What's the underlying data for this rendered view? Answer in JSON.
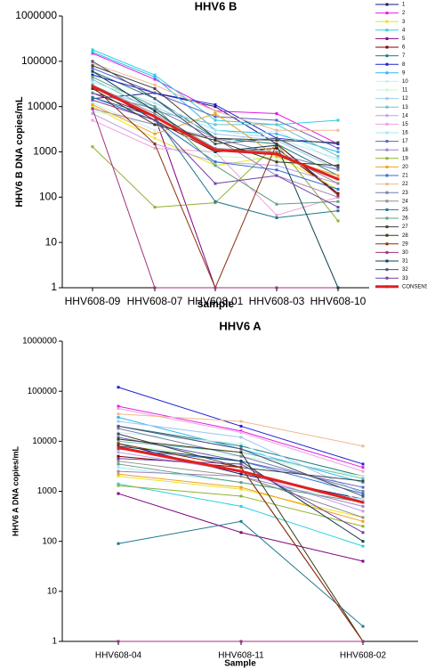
{
  "chart_data": [
    {
      "type": "line",
      "title": "HHV6 B",
      "x_label": "sample",
      "y_label": "HHV6 B DNA copies/mL",
      "log_scale": true,
      "legend": true,
      "categories": [
        "HHV608-09",
        "HHV608-07",
        "HHV608-01",
        "HHV608-03",
        "HHV608-10"
      ],
      "ylim": [
        1,
        1000000
      ],
      "yticks": [
        1,
        10,
        100,
        1000,
        10000,
        100000,
        1000000
      ],
      "series": [
        {
          "name": "1",
          "color": "#1a1a7a",
          "values": [
            15000,
            20000,
            10000,
            1500,
            120
          ]
        },
        {
          "name": "2",
          "color": "#e020e0",
          "values": [
            150000,
            40000,
            8000,
            7000,
            1500
          ]
        },
        {
          "name": "3",
          "color": "#e6e620",
          "values": [
            10000,
            2000,
            500,
            800,
            150
          ]
        },
        {
          "name": "4",
          "color": "#30d0e0",
          "values": [
            180000,
            50000,
            5000,
            4000,
            5000
          ]
        },
        {
          "name": "5",
          "color": "#800080",
          "values": [
            20000,
            6000,
            1,
            1,
            1
          ]
        },
        {
          "name": "6",
          "color": "#800000",
          "values": [
            30000,
            5000,
            1000,
            1200,
            120
          ]
        },
        {
          "name": "7",
          "color": "#208080",
          "values": [
            60000,
            15000,
            2000,
            1500,
            300
          ]
        },
        {
          "name": "8",
          "color": "#2020d0",
          "values": [
            50000,
            20000,
            11000,
            2000,
            1500
          ]
        },
        {
          "name": "9",
          "color": "#30b8f0",
          "values": [
            160000,
            45000,
            3000,
            2500,
            1000
          ]
        },
        {
          "name": "10",
          "color": "#c8f0f0",
          "values": [
            12000,
            3000,
            1500,
            3000,
            600
          ]
        },
        {
          "name": "11",
          "color": "#c8f8c8",
          "values": [
            8000,
            4000,
            800,
            700,
            300
          ]
        },
        {
          "name": "12",
          "color": "#a0c8f0",
          "values": [
            25000,
            10000,
            2500,
            1800,
            400
          ]
        },
        {
          "name": "13",
          "color": "#70c0c8",
          "values": [
            40000,
            8000,
            4000,
            4000,
            800
          ]
        },
        {
          "name": "14",
          "color": "#c0a0e8",
          "values": [
            7000,
            1500,
            600,
            500,
            200
          ]
        },
        {
          "name": "15",
          "color": "#f0a0e0",
          "values": [
            5000,
            1200,
            1000,
            40,
            100
          ]
        },
        {
          "name": "16",
          "color": "#a8e8f0",
          "values": [
            35000,
            12000,
            3000,
            2000,
            700
          ]
        },
        {
          "name": "17",
          "color": "#6060c0",
          "values": [
            70000,
            20000,
            6000,
            5000,
            1200
          ]
        },
        {
          "name": "18",
          "color": "#a080c0",
          "values": [
            9000,
            4000,
            2000,
            300,
            100
          ]
        },
        {
          "name": "19",
          "color": "#90b030",
          "values": [
            1300,
            60,
            75,
            1500,
            30
          ]
        },
        {
          "name": "20",
          "color": "#f0a020",
          "values": [
            11000,
            2500,
            7000,
            800,
            300
          ]
        },
        {
          "name": "21",
          "color": "#3070d0",
          "values": [
            16000,
            5000,
            600,
            400,
            150
          ]
        },
        {
          "name": "22",
          "color": "#f0b890",
          "values": [
            90000,
            30000,
            8000,
            3000,
            3000
          ]
        },
        {
          "name": "23",
          "color": "#7080b0",
          "values": [
            20000,
            9000,
            2000,
            900,
            400
          ]
        },
        {
          "name": "24",
          "color": "#909090",
          "values": [
            30000,
            7000,
            1200,
            1000,
            200
          ]
        },
        {
          "name": "25",
          "color": "#207890",
          "values": [
            16000,
            6000,
            80,
            35,
            50
          ]
        },
        {
          "name": "26",
          "color": "#60a080",
          "values": [
            45000,
            10000,
            500,
            70,
            80
          ]
        },
        {
          "name": "27",
          "color": "#404040",
          "values": [
            80000,
            25000,
            2000,
            1800,
            1600
          ]
        },
        {
          "name": "28",
          "color": "#3a3a10",
          "values": [
            25000,
            4000,
            1800,
            600,
            500
          ]
        },
        {
          "name": "29",
          "color": "#8a3010",
          "values": [
            28000,
            1500,
            1,
            1500,
            110
          ]
        },
        {
          "name": "30",
          "color": "#a03080",
          "values": [
            9000,
            1,
            1,
            1,
            1
          ]
        },
        {
          "name": "31",
          "color": "#104050",
          "values": [
            60000,
            8000,
            1000,
            1400,
            1
          ]
        },
        {
          "name": "32",
          "color": "#505070",
          "values": [
            100000,
            15000,
            1500,
            2000,
            450
          ]
        },
        {
          "name": "33",
          "color": "#7040a0",
          "values": [
            14000,
            5000,
            200,
            300,
            60
          ]
        },
        {
          "name": "CONSENSUS",
          "color": "#e02020",
          "line_width": 3,
          "values": [
            28000,
            6000,
            1100,
            900,
            250
          ]
        }
      ]
    },
    {
      "type": "line",
      "title": "HHV6 A",
      "x_label": "Sample",
      "y_label": "HHV6 A DNA copies/mL",
      "log_scale": true,
      "legend": false,
      "categories": [
        "HHV608-04",
        "HHV608-11",
        "HHV608-02"
      ],
      "ylim": [
        1,
        1000000
      ],
      "yticks": [
        1,
        10,
        100,
        1000,
        10000,
        100000,
        1000000
      ],
      "series": [
        {
          "color": "#1a1a7a",
          "values": [
            9000,
            2200,
            700
          ]
        },
        {
          "color": "#e020e0",
          "values": [
            50000,
            16000,
            3000
          ]
        },
        {
          "color": "#e6e620",
          "values": [
            2000,
            1100,
            300
          ]
        },
        {
          "color": "#30d0e0",
          "values": [
            1400,
            500,
            80
          ]
        },
        {
          "color": "#800080",
          "values": [
            900,
            150,
            40
          ]
        },
        {
          "color": "#800000",
          "values": [
            5000,
            3000,
            1
          ]
        },
        {
          "color": "#208080",
          "values": [
            20000,
            8000,
            2000
          ]
        },
        {
          "color": "#2020d0",
          "values": [
            120000,
            20000,
            3500
          ]
        },
        {
          "color": "#30b8f0",
          "values": [
            30000,
            7000,
            1500
          ]
        },
        {
          "color": "#c8f0f0",
          "values": [
            15000,
            9000,
            600
          ]
        },
        {
          "color": "#c8f8c8",
          "values": [
            8000,
            5000,
            2000
          ]
        },
        {
          "color": "#a0c8f0",
          "values": [
            25000,
            12000,
            900
          ]
        },
        {
          "color": "#70c0c8",
          "values": [
            10000,
            6000,
            1800
          ]
        },
        {
          "color": "#c0a0e8",
          "values": [
            6000,
            2500,
            400
          ]
        },
        {
          "color": "#f0a0e0",
          "values": [
            45000,
            15000,
            2500
          ]
        },
        {
          "color": "#a8e8f0",
          "values": [
            3000,
            1500,
            700
          ]
        },
        {
          "color": "#6060c0",
          "values": [
            12000,
            4000,
            1200
          ]
        },
        {
          "color": "#a080c0",
          "values": [
            2500,
            2000,
            500
          ]
        },
        {
          "color": "#90b030",
          "values": [
            1300,
            800,
            200
          ]
        },
        {
          "color": "#f0a020",
          "values": [
            2200,
            1200,
            250
          ]
        },
        {
          "color": "#3070d0",
          "values": [
            7000,
            4000,
            900
          ]
        },
        {
          "color": "#f0b890",
          "values": [
            35000,
            25000,
            8000
          ]
        },
        {
          "color": "#7080b0",
          "values": [
            18000,
            5000,
            1000
          ]
        },
        {
          "color": "#909090",
          "values": [
            4000,
            2000,
            300
          ]
        },
        {
          "color": "#207890",
          "values": [
            90,
            250,
            2
          ]
        },
        {
          "color": "#60a080",
          "values": [
            3500,
            1500,
            600
          ]
        },
        {
          "color": "#404040",
          "values": [
            14000,
            3000,
            1600
          ]
        },
        {
          "color": "#3a3a10",
          "values": [
            11000,
            6000,
            1
          ]
        },
        {
          "color": "#8a3010",
          "values": [
            9000,
            3000,
            1
          ]
        },
        {
          "color": "#a03080",
          "values": [
            1,
            1,
            1
          ]
        },
        {
          "color": "#104050",
          "values": [
            8000,
            4000,
            100
          ]
        },
        {
          "color": "#505070",
          "values": [
            20000,
            7000,
            800
          ]
        },
        {
          "color": "#7040a0",
          "values": [
            4500,
            3500,
            150
          ]
        },
        {
          "color": "#e02020",
          "line_width": 3,
          "values": [
            7500,
            2500,
            600
          ]
        }
      ]
    }
  ]
}
